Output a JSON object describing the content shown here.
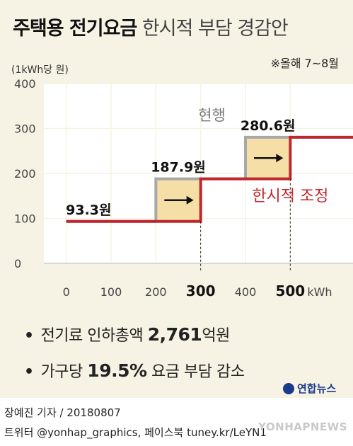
{
  "title": {
    "main": "주택용 전기요금",
    "sub": "한시적 부담 경감안"
  },
  "note": "※올해 7~8월",
  "summary": [
    {
      "text": "전기료 인하총액",
      "value": "2,761",
      "unit": "억원"
    },
    {
      "text": "가구당",
      "value": "19.5%",
      "unit": "요금 부담 감소"
    }
  ],
  "summary_bullet": "•",
  "logo": "연합뉴스",
  "credit": {
    "line1": "장예진 기자 / 20180807",
    "line2": "트위터 @yonhap_graphics, 페이스북 tuney.kr/LeYN1"
  },
  "watermark": "YONHAPNEWS",
  "colors": {
    "current": "#a8a8a8",
    "adjusted": "#c0272d",
    "saving": "#f5dfa6",
    "background": "#f6f2e4"
  },
  "chart_data": {
    "type": "line",
    "step": true,
    "xlim": [
      -50,
      640
    ],
    "ylim": [
      0,
      400
    ],
    "yticks": [
      0,
      100,
      200,
      300,
      400
    ],
    "xticks": [
      0,
      100,
      200,
      300,
      400,
      500
    ],
    "bold_xticks": [
      300,
      500
    ],
    "xunit": "kWh",
    "ylabel": "(1kWh당 원)",
    "grid": true,
    "series": [
      {
        "name": "현행",
        "x": [
          0,
          200,
          200,
          400,
          400,
          640
        ],
        "y": [
          93.3,
          93.3,
          187.9,
          187.9,
          280.6,
          280.6
        ]
      },
      {
        "name": "한시적 조정",
        "x": [
          0,
          300,
          300,
          500,
          500,
          640
        ],
        "y": [
          93.3,
          93.3,
          187.9,
          187.9,
          280.6,
          280.6
        ]
      }
    ],
    "price_labels": [
      {
        "text": "93.3원",
        "x": 50,
        "y": 93.3
      },
      {
        "text": "187.9원",
        "x": 250,
        "y": 187.9
      },
      {
        "text": "280.6원",
        "x": 450,
        "y": 280.6
      }
    ],
    "saving_regions": [
      {
        "x": [
          200,
          300
        ],
        "y": [
          93.3,
          187.9
        ]
      },
      {
        "x": [
          400,
          500
        ],
        "y": [
          187.9,
          280.6
        ]
      }
    ],
    "vlines": [
      300,
      500
    ]
  }
}
